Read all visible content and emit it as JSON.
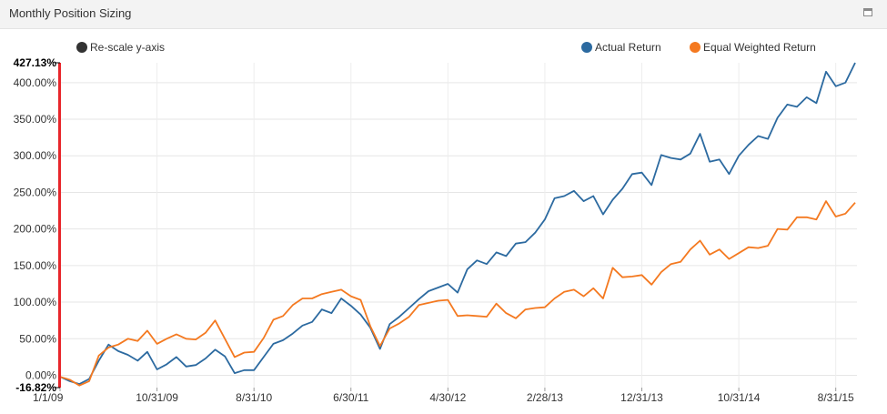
{
  "panel": {
    "title": "Monthly Position Sizing",
    "maximize_icon": "maximize-icon"
  },
  "rescale": {
    "label": "Re-scale y-axis",
    "color": "#333333"
  },
  "chart_data": {
    "type": "line",
    "grid": true,
    "legend_placement": "top-right",
    "ylim": [
      -16.82,
      427.13
    ],
    "range_labels": {
      "max": "427.13%",
      "min": "-16.82%"
    },
    "y_ticks": [
      {
        "value": 0,
        "label": "0.00%"
      },
      {
        "value": 50,
        "label": "50.00%"
      },
      {
        "value": 100,
        "label": "100.00%"
      },
      {
        "value": 150,
        "label": "150.00%"
      },
      {
        "value": 200,
        "label": "200.00%"
      },
      {
        "value": 250,
        "label": "250.00%"
      },
      {
        "value": 300,
        "label": "300.00%"
      },
      {
        "value": 350,
        "label": "350.00%"
      },
      {
        "value": 400,
        "label": "400.00%"
      }
    ],
    "x_ticks": [
      {
        "index": 0,
        "label": "1/1/09"
      },
      {
        "index": 10,
        "label": "10/31/09"
      },
      {
        "index": 20,
        "label": "8/31/10"
      },
      {
        "index": 30,
        "label": "6/30/11"
      },
      {
        "index": 40,
        "label": "4/30/12"
      },
      {
        "index": 50,
        "label": "2/28/13"
      },
      {
        "index": 60,
        "label": "12/31/13"
      },
      {
        "index": 70,
        "label": "10/31/14"
      },
      {
        "index": 80,
        "label": "8/31/15"
      }
    ],
    "series": [
      {
        "name": "Actual Return",
        "color": "#2c6aa0",
        "values": [
          -2,
          -8,
          -12,
          -5,
          20,
          42,
          33,
          28,
          20,
          32,
          8,
          15,
          25,
          12,
          14,
          23,
          35,
          26,
          3,
          7,
          7,
          25,
          43,
          48,
          57,
          68,
          73,
          90,
          85,
          105,
          95,
          83,
          65,
          36,
          70,
          80,
          92,
          104,
          115,
          120,
          125,
          113,
          145,
          157,
          152,
          168,
          163,
          180,
          182,
          195,
          213,
          242,
          245,
          252,
          238,
          245,
          220,
          240,
          255,
          275,
          277,
          260,
          301,
          297,
          295,
          303,
          330,
          292,
          295,
          275,
          300,
          315,
          327,
          323,
          352,
          370,
          367,
          380,
          372,
          415,
          395,
          400,
          427.13
        ]
      },
      {
        "name": "Equal Weighted Return",
        "color": "#f47920",
        "values": [
          -2,
          -6,
          -14,
          -8,
          27,
          38,
          42,
          50,
          47,
          61,
          43,
          50,
          56,
          50,
          49,
          58,
          75,
          50,
          25,
          31,
          32,
          51,
          76,
          81,
          96,
          105,
          105,
          111,
          114,
          117,
          108,
          103,
          67,
          40,
          64,
          71,
          80,
          96,
          99,
          102,
          103,
          81,
          82,
          81,
          80,
          98,
          85,
          78,
          90,
          92,
          93,
          105,
          114,
          117,
          108,
          119,
          105,
          147,
          134,
          135,
          137,
          124,
          141,
          152,
          155,
          172,
          184,
          165,
          172,
          159,
          167,
          175,
          174,
          177,
          200,
          199,
          216,
          216,
          213,
          238,
          217,
          221,
          236
        ]
      }
    ]
  }
}
